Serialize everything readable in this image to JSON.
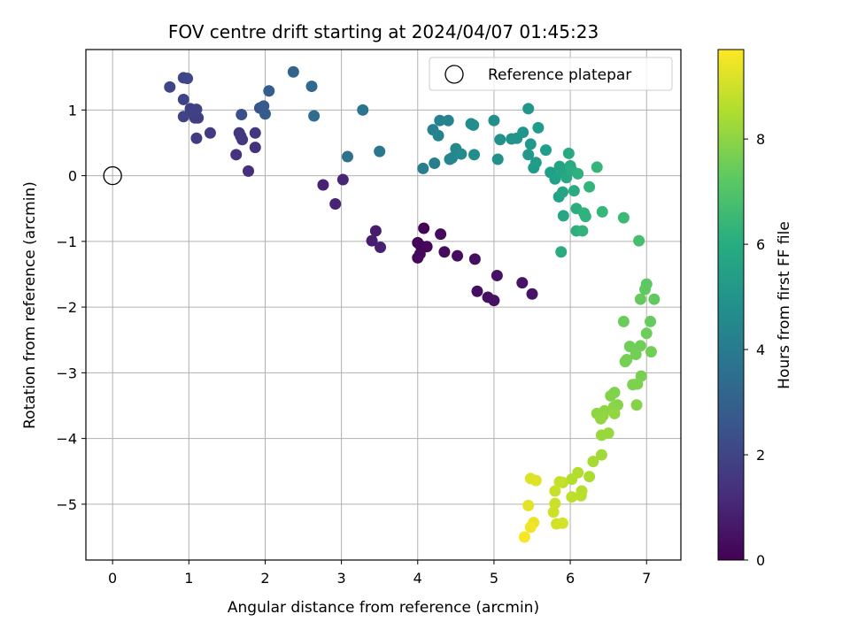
{
  "chart_data": {
    "type": "scatter",
    "title": "FOV centre drift starting at 2024/04/07 01:45:23",
    "xlabel": "Angular distance from reference (arcmin)",
    "ylabel": "Rotation from reference (arcmin)",
    "xlim": [
      -0.35,
      7.45
    ],
    "ylim": [
      -5.85,
      1.92
    ],
    "xticks": [
      0,
      1,
      2,
      3,
      4,
      5,
      6,
      7
    ],
    "yticks": [
      -5,
      -4,
      -3,
      -2,
      -1,
      0,
      1
    ],
    "grid": true,
    "legend": {
      "placement": "top-right",
      "label": "Reference platepar"
    },
    "reference_point": {
      "x": 0,
      "y": 0
    },
    "colorbar": {
      "label": "Hours from first FF file",
      "range": [
        0,
        9.7
      ],
      "ticks": [
        0,
        2,
        4,
        6,
        8
      ],
      "colormap": "viridis"
    },
    "points": [
      [
        4.08,
        -0.8,
        0.05
      ],
      [
        4.0,
        -1.02,
        0.08
      ],
      [
        4.04,
        -1.07,
        0.12
      ],
      [
        4.12,
        -1.08,
        0.15
      ],
      [
        4.0,
        -1.25,
        0.18
      ],
      [
        4.03,
        -1.19,
        0.2
      ],
      [
        4.3,
        -0.89,
        0.25
      ],
      [
        4.35,
        -1.16,
        0.28
      ],
      [
        4.52,
        -1.22,
        0.32
      ],
      [
        4.75,
        -1.27,
        0.35
      ],
      [
        4.78,
        -1.76,
        0.38
      ],
      [
        4.92,
        -1.85,
        0.42
      ],
      [
        5.0,
        -1.9,
        0.45
      ],
      [
        5.04,
        -1.52,
        0.48
      ],
      [
        5.37,
        -1.63,
        0.5
      ],
      [
        5.5,
        -1.8,
        0.52
      ],
      [
        3.45,
        -0.84,
        0.75
      ],
      [
        3.4,
        -0.99,
        0.8
      ],
      [
        3.51,
        -1.09,
        0.85
      ],
      [
        2.76,
        -0.14,
        0.9
      ],
      [
        2.92,
        -0.43,
        0.95
      ],
      [
        3.02,
        -0.06,
        1.0
      ],
      [
        1.78,
        0.07,
        1.3
      ],
      [
        1.87,
        0.43,
        1.4
      ],
      [
        1.62,
        0.32,
        1.45
      ],
      [
        1.66,
        0.65,
        1.5
      ],
      [
        1.7,
        0.55,
        1.55
      ],
      [
        1.68,
        0.6,
        1.55
      ],
      [
        1.87,
        0.65,
        1.6
      ],
      [
        1.28,
        0.65,
        1.7
      ],
      [
        1.1,
        0.57,
        1.75
      ],
      [
        1.08,
        0.88,
        1.8
      ],
      [
        1.12,
        0.88,
        1.8
      ],
      [
        1.05,
        0.97,
        1.85
      ],
      [
        1.02,
        1.02,
        1.85
      ],
      [
        1.1,
        1.01,
        1.9
      ],
      [
        0.93,
        0.9,
        1.95
      ],
      [
        0.93,
        1.16,
        2.0
      ],
      [
        0.75,
        1.35,
        2.05
      ],
      [
        0.93,
        1.49,
        2.05
      ],
      [
        0.98,
        1.48,
        2.1
      ],
      [
        1.69,
        0.93,
        2.4
      ],
      [
        1.93,
        1.03,
        2.6
      ],
      [
        1.98,
        1.06,
        2.7
      ],
      [
        2.0,
        0.94,
        2.8
      ],
      [
        2.05,
        1.29,
        2.9
      ],
      [
        2.37,
        1.58,
        3.1
      ],
      [
        2.61,
        1.36,
        3.3
      ],
      [
        2.64,
        0.91,
        3.4
      ],
      [
        3.08,
        0.29,
        3.6
      ],
      [
        3.28,
        1.0,
        3.8
      ],
      [
        3.5,
        0.37,
        3.9
      ],
      [
        4.07,
        0.11,
        4.1
      ],
      [
        4.22,
        0.19,
        4.2
      ],
      [
        4.2,
        0.7,
        4.25
      ],
      [
        4.29,
        0.84,
        4.3
      ],
      [
        4.27,
        0.61,
        4.35
      ],
      [
        4.4,
        0.84,
        4.4
      ],
      [
        4.42,
        0.25,
        4.45
      ],
      [
        4.45,
        0.27,
        4.5
      ],
      [
        4.5,
        0.41,
        4.55
      ],
      [
        4.57,
        0.33,
        4.6
      ],
      [
        4.7,
        0.79,
        4.65
      ],
      [
        4.73,
        0.77,
        4.7
      ],
      [
        4.74,
        0.32,
        4.75
      ],
      [
        5.0,
        0.84,
        4.8
      ],
      [
        5.05,
        0.25,
        4.85
      ],
      [
        5.08,
        0.55,
        4.9
      ],
      [
        5.23,
        0.56,
        4.95
      ],
      [
        5.3,
        0.57,
        5.0
      ],
      [
        5.38,
        0.66,
        5.05
      ],
      [
        5.45,
        1.02,
        5.1
      ],
      [
        5.45,
        0.32,
        5.15
      ],
      [
        5.48,
        0.48,
        5.2
      ],
      [
        5.52,
        0.12,
        5.25
      ],
      [
        5.55,
        0.2,
        5.3
      ],
      [
        5.58,
        0.73,
        5.35
      ],
      [
        5.68,
        0.39,
        5.4
      ],
      [
        5.74,
        0.05,
        5.45
      ],
      [
        5.8,
        -0.05,
        5.5
      ],
      [
        5.85,
        -0.32,
        5.55
      ],
      [
        5.86,
        0.14,
        5.6
      ],
      [
        5.89,
        0.05,
        5.65
      ],
      [
        5.9,
        -0.25,
        5.7
      ],
      [
        5.91,
        -0.61,
        5.75
      ],
      [
        5.95,
        -0.03,
        5.8
      ],
      [
        5.98,
        0.34,
        5.85
      ],
      [
        6.0,
        0.15,
        5.9
      ],
      [
        6.02,
        0.08,
        5.95
      ],
      [
        6.05,
        -0.23,
        6.0
      ],
      [
        6.08,
        -0.5,
        6.05
      ],
      [
        6.08,
        -0.84,
        6.1
      ],
      [
        6.1,
        0.03,
        6.15
      ],
      [
        6.18,
        -0.57,
        6.2
      ],
      [
        6.2,
        -0.62,
        6.25
      ],
      [
        6.16,
        -0.84,
        6.3
      ],
      [
        6.25,
        -0.17,
        6.35
      ],
      [
        5.88,
        -1.16,
        5.9
      ],
      [
        6.35,
        0.13,
        6.4
      ],
      [
        6.42,
        -0.55,
        6.45
      ],
      [
        6.7,
        -0.64,
        6.6
      ],
      [
        6.9,
        -0.99,
        6.8
      ],
      [
        7.0,
        -1.65,
        7.2
      ],
      [
        6.98,
        -1.73,
        7.25
      ],
      [
        7.1,
        -1.88,
        7.3
      ],
      [
        6.92,
        -1.88,
        7.35
      ],
      [
        7.05,
        -2.22,
        7.4
      ],
      [
        6.7,
        -2.22,
        7.45
      ],
      [
        7.0,
        -2.4,
        7.5
      ],
      [
        6.78,
        -2.6,
        7.55
      ],
      [
        6.92,
        -2.59,
        7.55
      ],
      [
        6.86,
        -2.72,
        7.6
      ],
      [
        7.06,
        -2.68,
        7.6
      ],
      [
        6.74,
        -2.8,
        7.65
      ],
      [
        6.72,
        -2.83,
        7.65
      ],
      [
        6.93,
        -3.05,
        7.7
      ],
      [
        6.82,
        -3.18,
        7.75
      ],
      [
        6.88,
        -3.17,
        7.75
      ],
      [
        6.58,
        -3.3,
        7.8
      ],
      [
        6.53,
        -3.35,
        7.85
      ],
      [
        6.62,
        -3.49,
        7.9
      ],
      [
        6.87,
        -3.49,
        7.9
      ],
      [
        6.57,
        -3.52,
        7.95
      ],
      [
        6.45,
        -3.58,
        8.0
      ],
      [
        6.35,
        -3.62,
        8.05
      ],
      [
        6.43,
        -3.65,
        8.05
      ],
      [
        6.4,
        -3.7,
        8.1
      ],
      [
        6.58,
        -3.62,
        8.1
      ],
      [
        6.5,
        -3.92,
        8.2
      ],
      [
        6.41,
        -3.95,
        8.2
      ],
      [
        6.41,
        -4.25,
        8.3
      ],
      [
        6.3,
        -4.35,
        8.4
      ],
      [
        6.25,
        -4.58,
        8.5
      ],
      [
        6.1,
        -4.52,
        8.55
      ],
      [
        6.02,
        -4.62,
        8.6
      ],
      [
        6.15,
        -4.8,
        8.65
      ],
      [
        6.14,
        -4.87,
        8.7
      ],
      [
        6.02,
        -4.89,
        8.75
      ],
      [
        5.9,
        -4.67,
        8.8
      ],
      [
        5.86,
        -4.66,
        8.85
      ],
      [
        5.8,
        -4.8,
        8.9
      ],
      [
        5.8,
        -4.99,
        8.95
      ],
      [
        5.78,
        -5.12,
        9.0
      ],
      [
        5.82,
        -5.3,
        9.05
      ],
      [
        5.9,
        -5.29,
        9.1
      ],
      [
        5.48,
        -4.61,
        9.2
      ],
      [
        5.55,
        -4.64,
        9.25
      ],
      [
        5.45,
        -5.02,
        9.3
      ],
      [
        5.52,
        -5.28,
        9.4
      ],
      [
        5.48,
        -5.35,
        9.5
      ],
      [
        5.4,
        -5.5,
        9.6
      ]
    ]
  }
}
